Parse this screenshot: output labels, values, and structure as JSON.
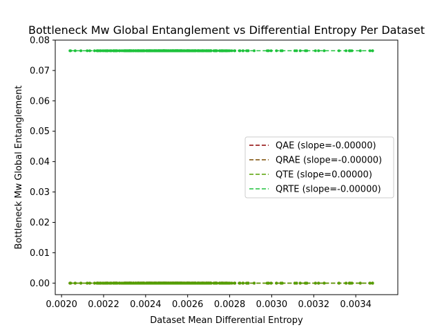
{
  "chart_data": {
    "type": "scatter",
    "title": "Bottleneck Mw Global Entanglement vs Differential Entropy Per Dataset",
    "xlabel": "Dataset Mean Differential Entropy",
    "ylabel": "Bottleneck Mw Global Entanglement",
    "xlim": [
      0.00197,
      0.0036
    ],
    "ylim": [
      -0.0038,
      0.08
    ],
    "x_ticks": [
      "0.0020",
      "0.0022",
      "0.0024",
      "0.0026",
      "0.0028",
      "0.0030",
      "0.0032",
      "0.0034"
    ],
    "x_tick_values": [
      0.002,
      0.0022,
      0.0024,
      0.0026,
      0.0028,
      0.003,
      0.0032,
      0.0034
    ],
    "y_ticks": [
      "0.00",
      "0.01",
      "0.02",
      "0.03",
      "0.04",
      "0.05",
      "0.06",
      "0.07",
      "0.08"
    ],
    "y_tick_values": [
      0.0,
      0.01,
      0.02,
      0.03,
      0.04,
      0.05,
      0.06,
      0.07,
      0.08
    ],
    "grid": false,
    "legend_position": "center-right",
    "x_range_points": [
      0.00204,
      0.00348
    ],
    "series": [
      {
        "name": "QAE (slope=-0.00000)",
        "color": "#8b0000",
        "y_value": 0.0,
        "slope": -0.0
      },
      {
        "name": "QRAE (slope=-0.00000)",
        "color": "#7a4a00",
        "y_value": 0.0,
        "slope": -0.0
      },
      {
        "name": "QTE (slope=0.00000)",
        "color": "#55a000",
        "y_value": 0.0,
        "slope": 0.0
      },
      {
        "name": "QRTE (slope=-0.00000)",
        "color": "#1ec23c",
        "y_value": 0.0765,
        "slope": -0.0
      }
    ]
  }
}
